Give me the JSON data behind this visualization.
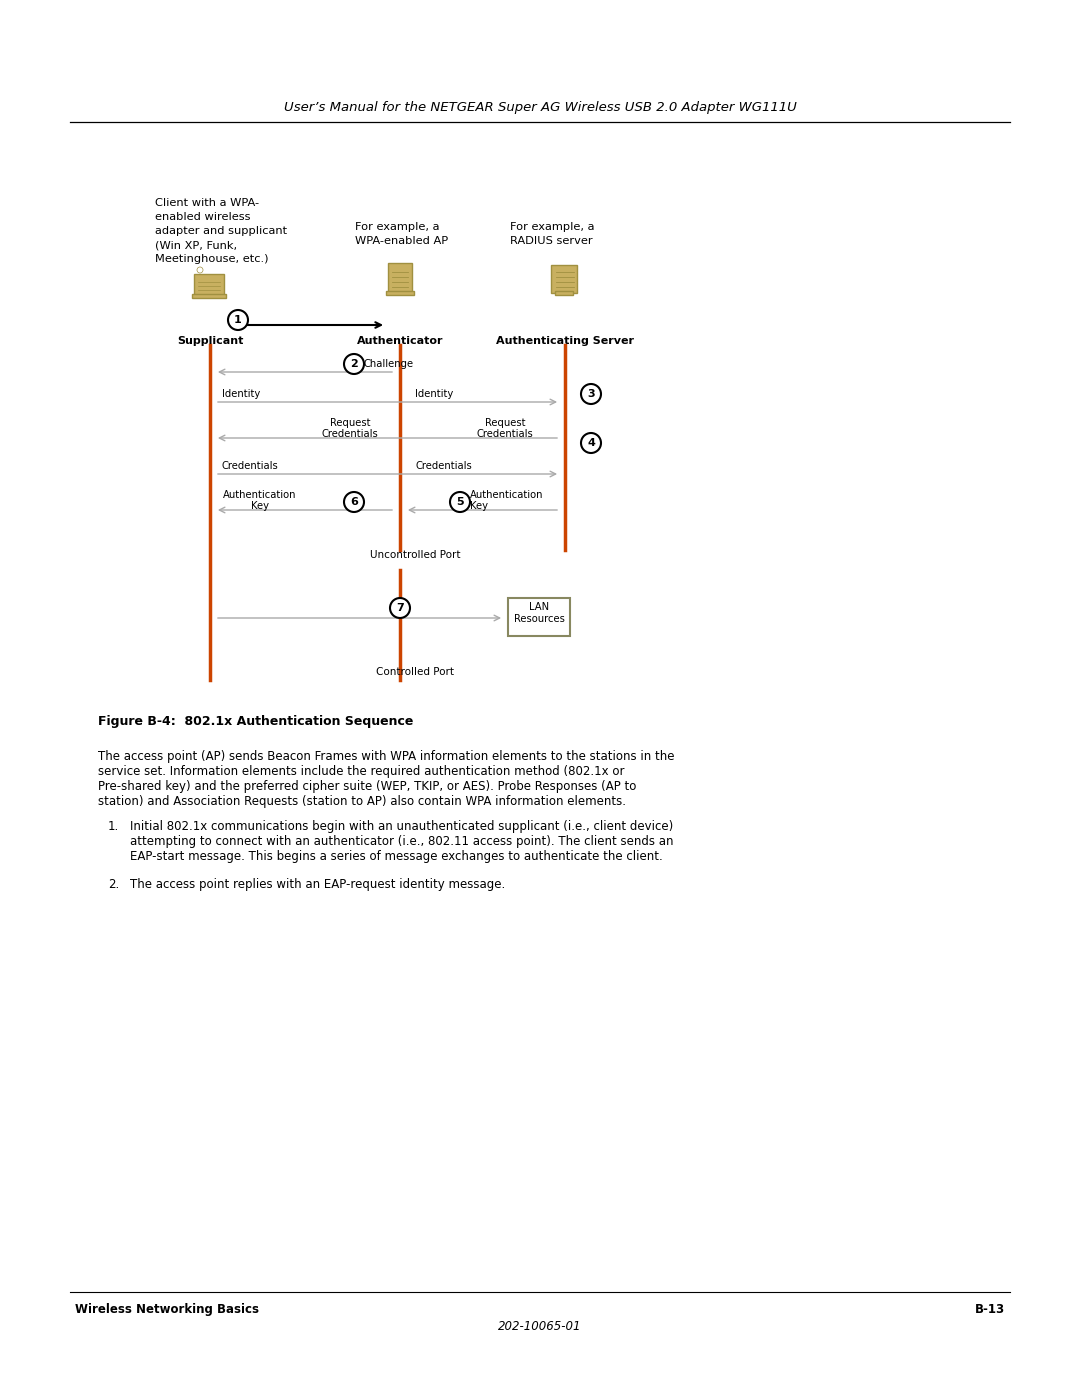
{
  "bg_color": "#ffffff",
  "header_text": "User’s Manual for the NETGEAR Super AG Wireless USB 2.0 Adapter WG111U",
  "footer_left": "Wireless Networking Basics",
  "footer_right": "B-13",
  "footer_center": "202-10065-01",
  "figure_caption": "Figure B-4:  802.1x Authentication Sequence",
  "body_text_lines": [
    "The access point (AP) sends Beacon Frames with WPA information elements to the stations in the",
    "service set. Information elements include the required authentication method (802.1x or",
    "Pre-shared key) and the preferred cipher suite (WEP, TKIP, or AES). Probe Responses (AP to",
    "station) and Association Requests (station to AP) also contain WPA information elements."
  ],
  "list_item1_lines": [
    "Initial 802.1x communications begin with an unauthenticated supplicant (i.e., client device)",
    "attempting to connect with an authenticator (i.e., 802.11 access point). The client sends an",
    "EAP-start message. This begins a series of message exchanges to authenticate the client."
  ],
  "list_item2": "The access point replies with an EAP-request identity message.",
  "col1_lines": [
    "Client with a WPA-",
    "enabled wireless",
    "adapter and supplicant",
    "(Win XP, Funk,",
    "Meetinghouse, etc.)"
  ],
  "col2_lines": [
    "For example, a",
    "WPA-enabled AP"
  ],
  "col3_lines": [
    "For example, a",
    "RADIUS server"
  ],
  "arrow_color": "#aaaaaa",
  "line_color": "#cc4400",
  "icon_color": "#c8b060",
  "icon_edge": "#a09040"
}
